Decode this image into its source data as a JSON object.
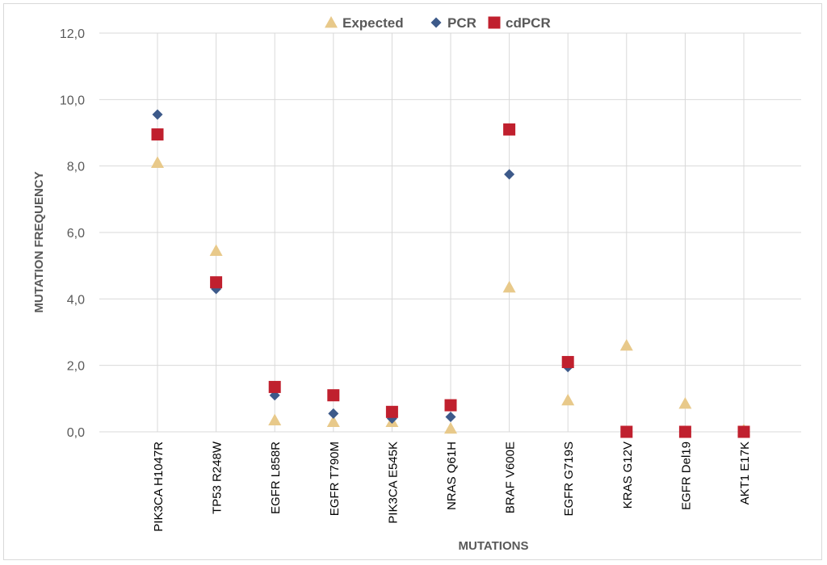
{
  "chart_data": {
    "type": "scatter",
    "title": "",
    "xlabel": "MUTATIONS",
    "ylabel": "MUTATION FREQUENCY",
    "ylim": [
      0,
      12
    ],
    "yticks": [
      "0,0",
      "2,0",
      "4,0",
      "6,0",
      "8,0",
      "10,0",
      "12,0"
    ],
    "grid": true,
    "legend_position": "top",
    "categories": [
      "PIK3CA H1047R",
      "TP53 R248W",
      "EGFR L858R",
      "EGFR T790M",
      "PIK3CA E545K",
      "NRAS Q61H",
      "BRAF V600E",
      "EGFR G719S",
      "KRAS G12V",
      "EGFR Del19",
      "AKT1 E17K"
    ],
    "series": [
      {
        "name": "Expected",
        "marker": "triangle",
        "color": "#e8c98a",
        "values": [
          8.1,
          5.45,
          0.35,
          0.3,
          0.3,
          0.1,
          4.35,
          0.95,
          2.6,
          0.85,
          0.05
        ]
      },
      {
        "name": "PCR",
        "marker": "diamond",
        "color": "#3d5a8a",
        "values": [
          9.55,
          4.3,
          1.1,
          0.55,
          0.4,
          0.45,
          7.75,
          1.95,
          0.0,
          0.0,
          0.0
        ]
      },
      {
        "name": "cdPCR",
        "marker": "square",
        "color": "#c0202e",
        "values": [
          8.95,
          4.5,
          1.35,
          1.1,
          0.6,
          0.8,
          9.1,
          2.1,
          0.0,
          0.0,
          0.0
        ]
      }
    ]
  }
}
